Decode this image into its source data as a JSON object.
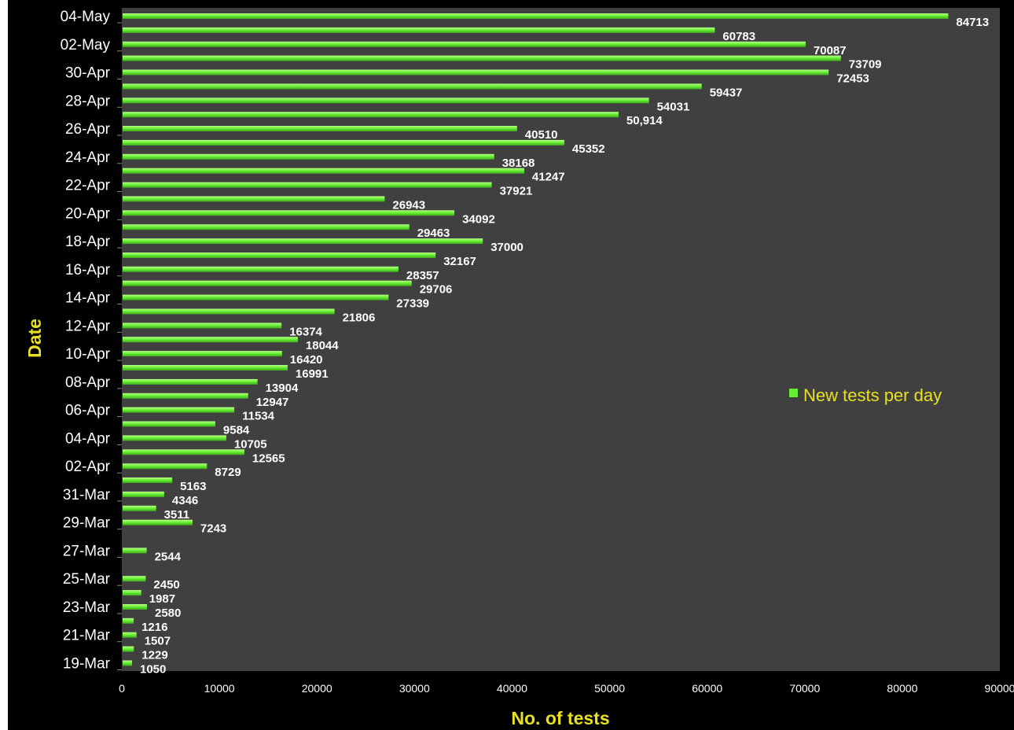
{
  "chart_data": {
    "type": "bar",
    "orientation": "horizontal",
    "xlabel": "No. of tests",
    "ylabel": "Date",
    "xlim": [
      0,
      90000
    ],
    "x_ticks": [
      0,
      10000,
      20000,
      30000,
      40000,
      50000,
      60000,
      70000,
      80000,
      90000
    ],
    "x_tick_labels": [
      "0",
      "10000",
      "20000",
      "30000",
      "40000",
      "50000",
      "60000",
      "70000",
      "80000",
      "90000"
    ],
    "legend_placement": "right",
    "grid": false,
    "series": [
      {
        "name": "New tests per day",
        "color": "#66ee33"
      }
    ],
    "slots_top_to_bottom": [
      "04-May",
      "03-May",
      "02-May",
      "01-May",
      "30-Apr",
      "29-Apr",
      "28-Apr",
      "27-Apr",
      "26-Apr",
      "25-Apr",
      "24-Apr",
      "23-Apr",
      "22-Apr",
      "21-Apr",
      "20-Apr",
      "19-Apr",
      "18-Apr",
      "17-Apr",
      "16-Apr",
      "15-Apr",
      "14-Apr",
      "13-Apr",
      "12-Apr",
      "11-Apr",
      "10-Apr",
      "09-Apr",
      "08-Apr",
      "07-Apr",
      "06-Apr",
      "05-Apr",
      "04-Apr",
      "03-Apr",
      "02-Apr",
      "01-Apr",
      "31-Mar",
      "30-Mar",
      "29-Mar",
      "28-Mar",
      "27-Mar",
      "26-Mar",
      "25-Mar",
      "24-Mar",
      "23-Mar",
      "22-Mar",
      "21-Mar",
      "20-Mar",
      "19-Mar"
    ],
    "visible_tick_labels": [
      "04-May",
      "02-May",
      "30-Apr",
      "28-Apr",
      "26-Apr",
      "24-Apr",
      "22-Apr",
      "20-Apr",
      "18-Apr",
      "16-Apr",
      "14-Apr",
      "12-Apr",
      "10-Apr",
      "08-Apr",
      "06-Apr",
      "04-Apr",
      "02-Apr",
      "31-Mar",
      "29-Mar",
      "27-Mar",
      "25-Mar",
      "23-Mar",
      "21-Mar",
      "19-Mar"
    ],
    "bars": [
      {
        "date": "04-May",
        "value": 84713,
        "label": "84713"
      },
      {
        "date": "03-May",
        "value": 60783,
        "label": "60783"
      },
      {
        "date": "02-May",
        "value": 70087,
        "label": "70087"
      },
      {
        "date": "01-May",
        "value": 73709,
        "label": "73709"
      },
      {
        "date": "30-Apr",
        "value": 72453,
        "label": "72453"
      },
      {
        "date": "29-Apr",
        "value": 59437,
        "label": "59437"
      },
      {
        "date": "28-Apr",
        "value": 54031,
        "label": "54031"
      },
      {
        "date": "27-Apr",
        "value": 50914,
        "label": "50,914"
      },
      {
        "date": "26-Apr",
        "value": 40510,
        "label": "40510"
      },
      {
        "date": "25-Apr",
        "value": 45352,
        "label": "45352"
      },
      {
        "date": "24-Apr",
        "value": 38168,
        "label": "38168"
      },
      {
        "date": "23-Apr",
        "value": 41247,
        "label": "41247"
      },
      {
        "date": "22-Apr",
        "value": 37921,
        "label": "37921"
      },
      {
        "date": "21-Apr",
        "value": 26943,
        "label": "26943"
      },
      {
        "date": "20-Apr",
        "value": 34092,
        "label": "34092"
      },
      {
        "date": "19-Apr",
        "value": 29463,
        "label": "29463"
      },
      {
        "date": "18-Apr",
        "value": 37000,
        "label": "37000"
      },
      {
        "date": "17-Apr",
        "value": 32167,
        "label": "32167"
      },
      {
        "date": "16-Apr",
        "value": 28357,
        "label": "28357"
      },
      {
        "date": "15-Apr",
        "value": 29706,
        "label": "29706"
      },
      {
        "date": "14-Apr",
        "value": 27339,
        "label": "27339"
      },
      {
        "date": "13-Apr",
        "value": 21806,
        "label": "21806"
      },
      {
        "date": "12-Apr",
        "value": 16374,
        "label": "16374"
      },
      {
        "date": "11-Apr",
        "value": 18044,
        "label": "18044"
      },
      {
        "date": "10-Apr",
        "value": 16420,
        "label": "16420"
      },
      {
        "date": "09-Apr",
        "value": 16991,
        "label": "16991"
      },
      {
        "date": "08-Apr",
        "value": 13904,
        "label": "13904"
      },
      {
        "date": "07-Apr",
        "value": 12947,
        "label": "12947"
      },
      {
        "date": "06-Apr",
        "value": 11534,
        "label": "11534"
      },
      {
        "date": "05-Apr",
        "value": 9584,
        "label": "9584"
      },
      {
        "date": "04-Apr",
        "value": 10705,
        "label": "10705"
      },
      {
        "date": "03-Apr",
        "value": 12565,
        "label": "12565"
      },
      {
        "date": "02-Apr",
        "value": 8729,
        "label": "8729"
      },
      {
        "date": "01-Apr",
        "value": 5163,
        "label": "5163"
      },
      {
        "date": "31-Mar",
        "value": 4346,
        "label": "4346"
      },
      {
        "date": "30-Mar",
        "value": 3511,
        "label": "3511"
      },
      {
        "date": "29-Mar",
        "value": 7243,
        "label": "7243"
      },
      {
        "date": "27-Mar",
        "value": 2544,
        "label": "2544"
      },
      {
        "date": "25-Mar",
        "value": 2450,
        "label": "2450"
      },
      {
        "date": "24-Mar",
        "value": 1987,
        "label": "1987"
      },
      {
        "date": "23-Mar",
        "value": 2580,
        "label": "2580"
      },
      {
        "date": "22-Mar",
        "value": 1216,
        "label": "1216"
      },
      {
        "date": "21-Mar",
        "value": 1507,
        "label": "1507"
      },
      {
        "date": "20-Mar",
        "value": 1229,
        "label": "1229"
      },
      {
        "date": "19-Mar",
        "value": 1050,
        "label": "1050"
      }
    ],
    "colors": {
      "background": "#000000",
      "plot_area": "#404040",
      "bar": "#66ee33",
      "bar_highlight": "#aaff77",
      "text": "#ffffff",
      "axis_title": "#e8e020"
    }
  }
}
